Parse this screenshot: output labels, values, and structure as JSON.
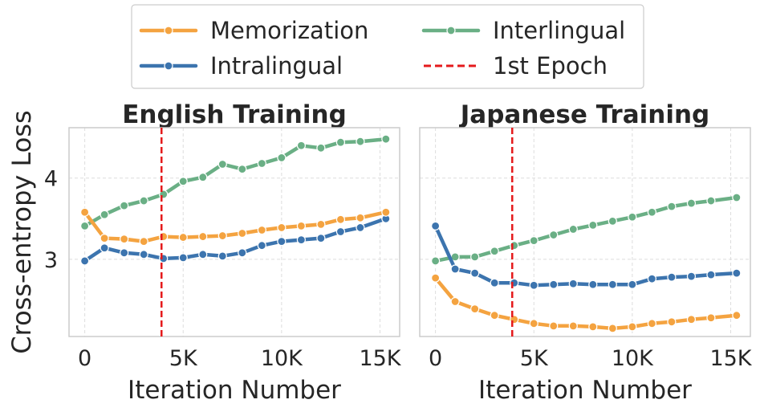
{
  "chart_data": {
    "type": "line",
    "ylabel": "Cross-entropy Loss",
    "legend": {
      "placement": "top-center",
      "entries": [
        {
          "name": "Memorization",
          "color": "#F4A340",
          "style": "solid-marker"
        },
        {
          "name": "Interlingual",
          "color": "#6AAF85",
          "style": "solid-marker"
        },
        {
          "name": "Intralingual",
          "color": "#3C74AE",
          "style": "solid-marker"
        },
        {
          "name": "1st Epoch",
          "color": "#E41A1C",
          "style": "dashed"
        }
      ]
    },
    "shared_y_ticks": [
      3,
      4
    ],
    "ylim": [
      2.05,
      4.62
    ],
    "xlim": [
      -800,
      16000
    ],
    "x_ticks": [
      0,
      5000,
      10000,
      15000
    ],
    "x_tick_labels": [
      "0",
      "5K",
      "10K",
      "15K"
    ],
    "epoch_line_x": 3900,
    "panels": [
      {
        "title": "English Training",
        "xlabel": "Iteration Number",
        "x": [
          0,
          1000,
          2000,
          3000,
          4000,
          5000,
          6000,
          7000,
          8000,
          9000,
          10000,
          11000,
          12000,
          13000,
          14000,
          15300
        ],
        "series": [
          {
            "name": "Memorization",
            "values": [
              3.58,
              3.26,
              3.25,
              3.22,
              3.28,
              3.27,
              3.28,
              3.29,
              3.32,
              3.36,
              3.39,
              3.41,
              3.43,
              3.49,
              3.51,
              3.58
            ]
          },
          {
            "name": "Intralingual",
            "values": [
              2.98,
              3.14,
              3.08,
              3.06,
              3.01,
              3.02,
              3.06,
              3.04,
              3.08,
              3.17,
              3.22,
              3.24,
              3.26,
              3.34,
              3.39,
              3.5
            ]
          },
          {
            "name": "Interlingual",
            "values": [
              3.41,
              3.55,
              3.66,
              3.72,
              3.8,
              3.96,
              4.01,
              4.17,
              4.11,
              4.18,
              4.25,
              4.4,
              4.37,
              4.44,
              4.45,
              4.48
            ]
          }
        ]
      },
      {
        "title": "Japanese Training",
        "xlabel": "Iteration Number",
        "x": [
          0,
          1000,
          2000,
          3000,
          4000,
          5000,
          6000,
          7000,
          8000,
          9000,
          10000,
          11000,
          12000,
          13000,
          14000,
          15300
        ],
        "series": [
          {
            "name": "Memorization",
            "values": [
              2.77,
              2.48,
              2.39,
              2.31,
              2.26,
              2.21,
              2.18,
              2.18,
              2.17,
              2.15,
              2.17,
              2.21,
              2.23,
              2.26,
              2.28,
              2.31
            ]
          },
          {
            "name": "Intralingual",
            "values": [
              3.41,
              2.88,
              2.83,
              2.71,
              2.71,
              2.68,
              2.69,
              2.7,
              2.69,
              2.69,
              2.69,
              2.76,
              2.78,
              2.79,
              2.81,
              2.83
            ]
          },
          {
            "name": "Interlingual",
            "values": [
              2.98,
              3.03,
              3.03,
              3.1,
              3.17,
              3.23,
              3.3,
              3.37,
              3.42,
              3.47,
              3.52,
              3.58,
              3.65,
              3.69,
              3.72,
              3.76
            ]
          }
        ]
      }
    ]
  }
}
